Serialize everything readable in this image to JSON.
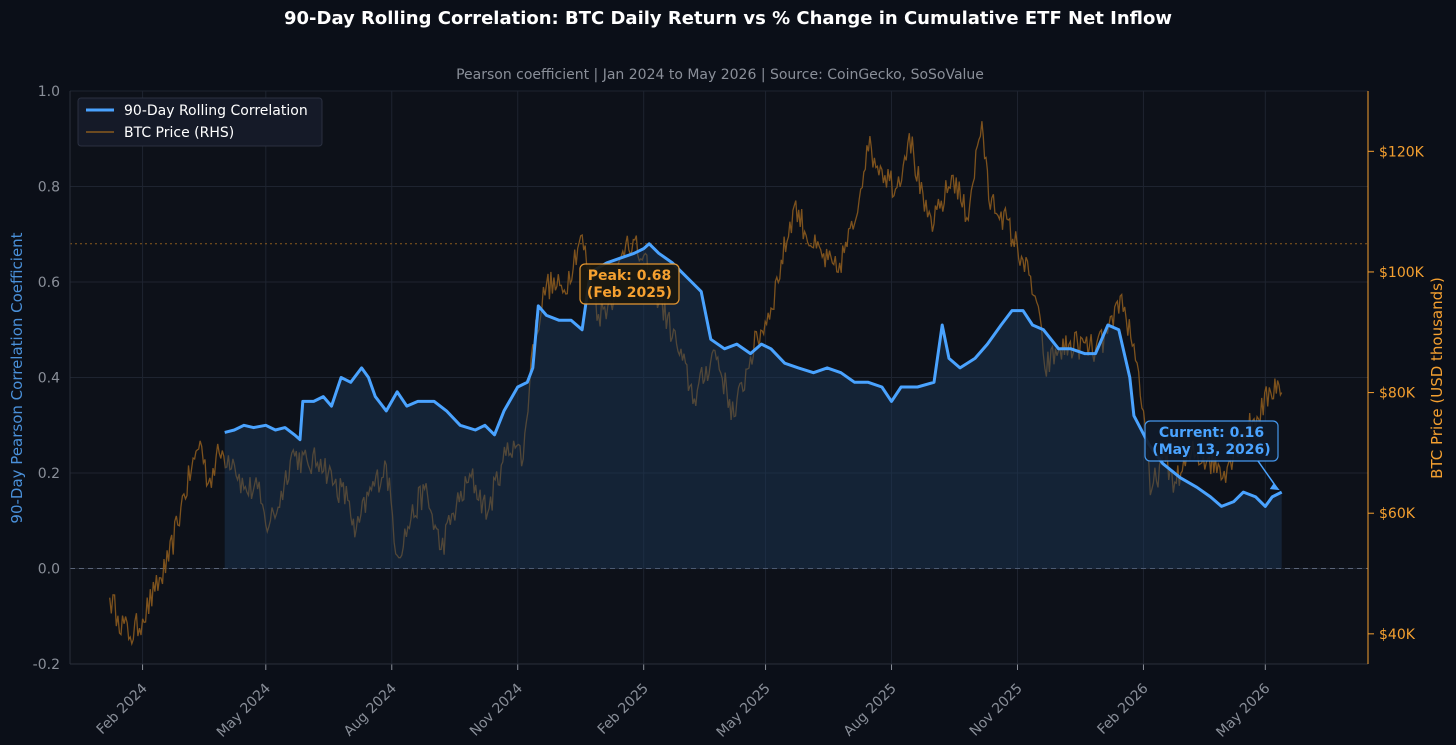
{
  "chart_data": {
    "type": "line",
    "title": "90-Day Rolling Correlation: BTC Daily Return vs % Change in Cumulative ETF Net Inflow",
    "subtitle": "Pearson coefficient  |  Jan 2024 to May 2026  |  Source: CoinGecko, SoSoValue",
    "ylabel": "90-Day Pearson Correlation Coefficient",
    "ylabel_right": "BTC Price (USD thousands)",
    "ylim": [
      -0.2,
      1.0
    ],
    "y_ticks": [
      -0.2,
      0.0,
      0.2,
      0.4,
      0.6,
      0.8,
      1.0
    ],
    "y_tick_labels": [
      "-0.2",
      "0.0",
      "0.2",
      "0.4",
      "0.6",
      "0.8",
      "1.0"
    ],
    "ylim_right": [
      35,
      130
    ],
    "y_right_ticks": [
      40,
      60,
      80,
      100,
      120
    ],
    "y_right_tick_labels": [
      "$40K",
      "$60K",
      "$80K",
      "$100K",
      "$120K"
    ],
    "xlim": [
      "2023-12-10",
      "2026-07-15"
    ],
    "x_ticks": [
      "2024-02-01",
      "2024-05-01",
      "2024-08-01",
      "2024-11-01",
      "2025-02-01",
      "2025-05-01",
      "2025-08-01",
      "2025-11-01",
      "2026-02-01",
      "2026-05-01"
    ],
    "x_tick_labels": [
      "Feb 2024",
      "May 2024",
      "Aug 2024",
      "Nov 2024",
      "Feb 2025",
      "May 2025",
      "Aug 2025",
      "Nov 2025",
      "Feb 2026",
      "May 2026"
    ],
    "grid": true,
    "legend": "top-left",
    "reference_lines": [
      {
        "axis": "left",
        "y": 0.0,
        "style": "dashed"
      },
      {
        "axis": "left",
        "y": 0.68,
        "style": "dotted"
      }
    ],
    "series": [
      {
        "name": "90-Day Rolling Correlation",
        "axis": "left",
        "color": "#4aa3ff",
        "points": [
          [
            "2024-04-01",
            0.285
          ],
          [
            "2024-04-08",
            0.29
          ],
          [
            "2024-04-15",
            0.3
          ],
          [
            "2024-04-22",
            0.295
          ],
          [
            "2024-05-01",
            0.3
          ],
          [
            "2024-05-08",
            0.29
          ],
          [
            "2024-05-15",
            0.295
          ],
          [
            "2024-05-22",
            0.28
          ],
          [
            "2024-05-26",
            0.27
          ],
          [
            "2024-05-28",
            0.35
          ],
          [
            "2024-06-05",
            0.35
          ],
          [
            "2024-06-12",
            0.36
          ],
          [
            "2024-06-18",
            0.34
          ],
          [
            "2024-06-25",
            0.4
          ],
          [
            "2024-07-02",
            0.39
          ],
          [
            "2024-07-10",
            0.42
          ],
          [
            "2024-07-15",
            0.4
          ],
          [
            "2024-07-20",
            0.36
          ],
          [
            "2024-07-28",
            0.33
          ],
          [
            "2024-08-05",
            0.37
          ],
          [
            "2024-08-12",
            0.34
          ],
          [
            "2024-08-20",
            0.35
          ],
          [
            "2024-09-01",
            0.35
          ],
          [
            "2024-09-10",
            0.33
          ],
          [
            "2024-09-20",
            0.3
          ],
          [
            "2024-10-01",
            0.29
          ],
          [
            "2024-10-08",
            0.3
          ],
          [
            "2024-10-15",
            0.28
          ],
          [
            "2024-10-22",
            0.33
          ],
          [
            "2024-11-01",
            0.38
          ],
          [
            "2024-11-08",
            0.39
          ],
          [
            "2024-11-12",
            0.42
          ],
          [
            "2024-11-16",
            0.55
          ],
          [
            "2024-11-22",
            0.53
          ],
          [
            "2024-12-01",
            0.52
          ],
          [
            "2024-12-10",
            0.52
          ],
          [
            "2024-12-18",
            0.5
          ],
          [
            "2024-12-24",
            0.62
          ],
          [
            "2025-01-05",
            0.64
          ],
          [
            "2025-01-15",
            0.65
          ],
          [
            "2025-01-25",
            0.66
          ],
          [
            "2025-02-01",
            0.67
          ],
          [
            "2025-02-05",
            0.68
          ],
          [
            "2025-02-12",
            0.66
          ],
          [
            "2025-02-22",
            0.64
          ],
          [
            "2025-03-01",
            0.62
          ],
          [
            "2025-03-08",
            0.6
          ],
          [
            "2025-03-15",
            0.58
          ],
          [
            "2025-03-22",
            0.48
          ],
          [
            "2025-04-01",
            0.46
          ],
          [
            "2025-04-10",
            0.47
          ],
          [
            "2025-04-20",
            0.45
          ],
          [
            "2025-04-28",
            0.47
          ],
          [
            "2025-05-05",
            0.46
          ],
          [
            "2025-05-15",
            0.43
          ],
          [
            "2025-05-25",
            0.42
          ],
          [
            "2025-06-05",
            0.41
          ],
          [
            "2025-06-15",
            0.42
          ],
          [
            "2025-06-25",
            0.41
          ],
          [
            "2025-07-05",
            0.39
          ],
          [
            "2025-07-15",
            0.39
          ],
          [
            "2025-07-25",
            0.38
          ],
          [
            "2025-08-01",
            0.35
          ],
          [
            "2025-08-08",
            0.38
          ],
          [
            "2025-08-20",
            0.38
          ],
          [
            "2025-09-01",
            0.39
          ],
          [
            "2025-09-07",
            0.51
          ],
          [
            "2025-09-12",
            0.44
          ],
          [
            "2025-09-20",
            0.42
          ],
          [
            "2025-10-01",
            0.44
          ],
          [
            "2025-10-10",
            0.47
          ],
          [
            "2025-10-20",
            0.51
          ],
          [
            "2025-10-28",
            0.54
          ],
          [
            "2025-11-05",
            0.54
          ],
          [
            "2025-11-12",
            0.51
          ],
          [
            "2025-11-20",
            0.5
          ],
          [
            "2025-12-01",
            0.46
          ],
          [
            "2025-12-10",
            0.46
          ],
          [
            "2025-12-20",
            0.45
          ],
          [
            "2025-12-28",
            0.45
          ],
          [
            "2026-01-06",
            0.51
          ],
          [
            "2026-01-14",
            0.5
          ],
          [
            "2026-01-22",
            0.4
          ],
          [
            "2026-01-25",
            0.32
          ],
          [
            "2026-02-05",
            0.26
          ],
          [
            "2026-02-15",
            0.22
          ],
          [
            "2026-02-28",
            0.19
          ],
          [
            "2026-03-12",
            0.17
          ],
          [
            "2026-03-22",
            0.15
          ],
          [
            "2026-03-30",
            0.13
          ],
          [
            "2026-04-08",
            0.14
          ],
          [
            "2026-04-15",
            0.16
          ],
          [
            "2026-04-24",
            0.15
          ],
          [
            "2026-05-01",
            0.13
          ],
          [
            "2026-05-06",
            0.15
          ],
          [
            "2026-05-13",
            0.16
          ]
        ]
      },
      {
        "name": "BTC Price (RHS)",
        "axis": "right",
        "color": "#8a5a1e",
        "points": [
          [
            "2024-01-08",
            46
          ],
          [
            "2024-01-14",
            43
          ],
          [
            "2024-01-23",
            39.5
          ],
          [
            "2024-02-01",
            42.5
          ],
          [
            "2024-02-10",
            47
          ],
          [
            "2024-02-20",
            52
          ],
          [
            "2024-02-29",
            61
          ],
          [
            "2024-03-10",
            69
          ],
          [
            "2024-03-14",
            72
          ],
          [
            "2024-03-20",
            65
          ],
          [
            "2024-03-28",
            70
          ],
          [
            "2024-04-07",
            69
          ],
          [
            "2024-04-15",
            64
          ],
          [
            "2024-04-25",
            64
          ],
          [
            "2024-05-01",
            58
          ],
          [
            "2024-05-10",
            61
          ],
          [
            "2024-05-20",
            70
          ],
          [
            "2024-06-01",
            68
          ],
          [
            "2024-06-10",
            69
          ],
          [
            "2024-06-20",
            65
          ],
          [
            "2024-07-01",
            62
          ],
          [
            "2024-07-05",
            56
          ],
          [
            "2024-07-15",
            63
          ],
          [
            "2024-07-28",
            68
          ],
          [
            "2024-08-05",
            53
          ],
          [
            "2024-08-15",
            59
          ],
          [
            "2024-08-25",
            64
          ],
          [
            "2024-09-06",
            54
          ],
          [
            "2024-09-15",
            60
          ],
          [
            "2024-09-28",
            66
          ],
          [
            "2024-10-10",
            60
          ],
          [
            "2024-10-20",
            68
          ],
          [
            "2024-10-29",
            72
          ],
          [
            "2024-11-05",
            69
          ],
          [
            "2024-11-12",
            88
          ],
          [
            "2024-11-22",
            98
          ],
          [
            "2024-12-05",
            97
          ],
          [
            "2024-12-17",
            106
          ],
          [
            "2024-12-30",
            93
          ],
          [
            "2025-01-08",
            95
          ],
          [
            "2025-01-20",
            106
          ],
          [
            "2025-01-31",
            102
          ],
          [
            "2025-02-10",
            97
          ],
          [
            "2025-02-25",
            88
          ],
          [
            "2025-03-10",
            79
          ],
          [
            "2025-03-25",
            87
          ],
          [
            "2025-04-08",
            76
          ],
          [
            "2025-04-20",
            86
          ],
          [
            "2025-05-05",
            94
          ],
          [
            "2025-05-22",
            111
          ],
          [
            "2025-06-05",
            104
          ],
          [
            "2025-06-22",
            100
          ],
          [
            "2025-07-05",
            108
          ],
          [
            "2025-07-14",
            121
          ],
          [
            "2025-07-25",
            117
          ],
          [
            "2025-08-05",
            114
          ],
          [
            "2025-08-14",
            123
          ],
          [
            "2025-08-25",
            110
          ],
          [
            "2025-09-01",
            108
          ],
          [
            "2025-09-15",
            116
          ],
          [
            "2025-09-25",
            109
          ],
          [
            "2025-10-06",
            125
          ],
          [
            "2025-10-11",
            112
          ],
          [
            "2025-10-20",
            110
          ],
          [
            "2025-11-05",
            102
          ],
          [
            "2025-11-15",
            95
          ],
          [
            "2025-11-21",
            84
          ],
          [
            "2025-12-01",
            87
          ],
          [
            "2025-12-15",
            88
          ],
          [
            "2025-12-28",
            87
          ],
          [
            "2026-01-10",
            91
          ],
          [
            "2026-01-15",
            96
          ],
          [
            "2026-01-25",
            88
          ],
          [
            "2026-02-01",
            77
          ],
          [
            "2026-02-06",
            63
          ],
          [
            "2026-02-15",
            69
          ],
          [
            "2026-02-25",
            65
          ],
          [
            "2026-03-08",
            70
          ],
          [
            "2026-03-20",
            69
          ],
          [
            "2026-04-01",
            67
          ],
          [
            "2026-04-12",
            72
          ],
          [
            "2026-04-25",
            76
          ],
          [
            "2026-05-05",
            80
          ],
          [
            "2026-05-10",
            82
          ],
          [
            "2026-05-13",
            80
          ]
        ]
      }
    ],
    "annotations": [
      {
        "text_line1": "Peak: 0.68",
        "text_line2": "(Feb 2025)",
        "point": [
          "2025-02-05",
          0.68
        ],
        "color": "#f5a030"
      },
      {
        "text_line1": "Current: 0.16",
        "text_line2": "(May 13, 2026)",
        "point": [
          "2026-05-13",
          0.16
        ],
        "color": "#4aa3ff"
      }
    ]
  }
}
